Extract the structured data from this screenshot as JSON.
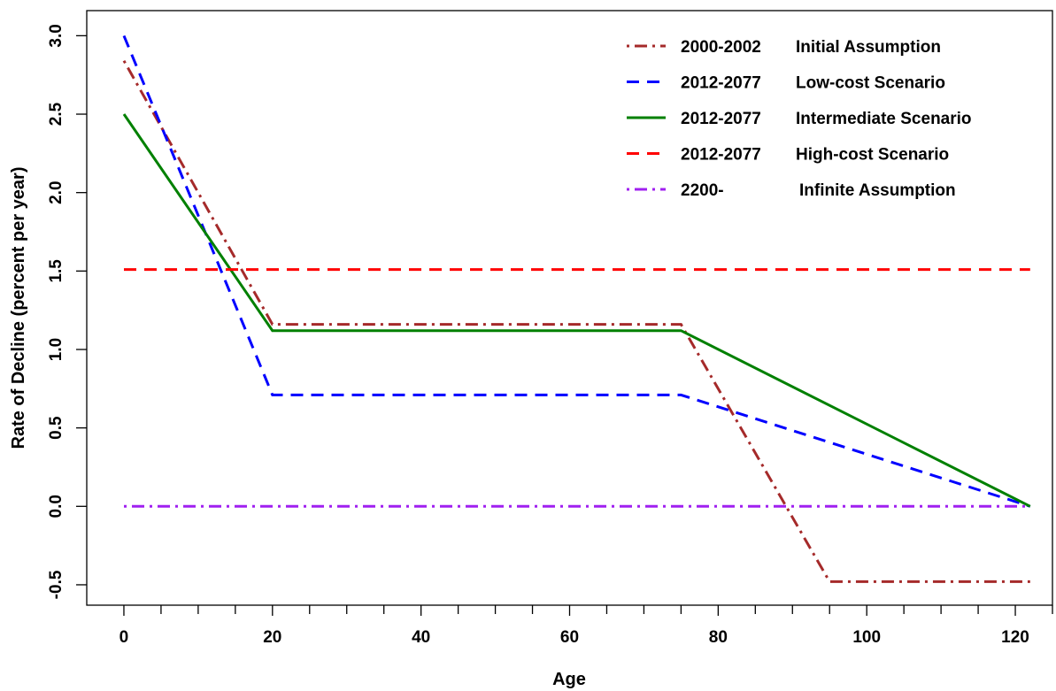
{
  "chart_data": {
    "type": "line",
    "title": "",
    "xlabel": "Age",
    "ylabel": "Rate of Decline (percent per year)",
    "xlim": [
      -5,
      125
    ],
    "ylim": [
      -0.63,
      3.16
    ],
    "x_ticks": [
      0,
      20,
      40,
      60,
      80,
      100,
      120
    ],
    "x_minor_step": 5,
    "y_ticks": [
      -0.5,
      0.0,
      0.5,
      1.0,
      1.5,
      2.0,
      2.5,
      3.0
    ],
    "y_tick_labels": [
      "-0.5",
      "0.0",
      "0.5",
      "1.0",
      "1.5",
      "2.0",
      "2.5",
      "3.0"
    ],
    "grid": false,
    "legend_position": "top-right",
    "series": [
      {
        "period": "2000-2002",
        "label": "Initial Assumption",
        "color": "#a52a2a",
        "dash": "dot-dash",
        "x": [
          0,
          20,
          75,
          95,
          122
        ],
        "y": [
          2.84,
          1.16,
          1.16,
          -0.48,
          -0.48
        ]
      },
      {
        "period": "2012-2077",
        "label": "Low-cost Scenario",
        "color": "#0000ff",
        "dash": "dashed",
        "x": [
          0,
          20,
          75,
          122
        ],
        "y": [
          3.0,
          0.71,
          0.71,
          0.0
        ]
      },
      {
        "period": "2012-2077",
        "label": "Intermediate Scenario",
        "color": "#008000",
        "dash": "solid",
        "x": [
          0,
          20,
          75,
          122
        ],
        "y": [
          2.5,
          1.12,
          1.12,
          0.0
        ]
      },
      {
        "period": "2012-2077",
        "label": "High-cost Scenario",
        "color": "#ff0000",
        "dash": "dashed",
        "x": [
          0,
          122
        ],
        "y": [
          1.51,
          1.51
        ]
      },
      {
        "period": "2200-",
        "label": "Infinite Assumption",
        "color": "#a020f0",
        "dash": "dot-dash",
        "x": [
          0,
          122
        ],
        "y": [
          0.0,
          0.0
        ]
      }
    ]
  }
}
